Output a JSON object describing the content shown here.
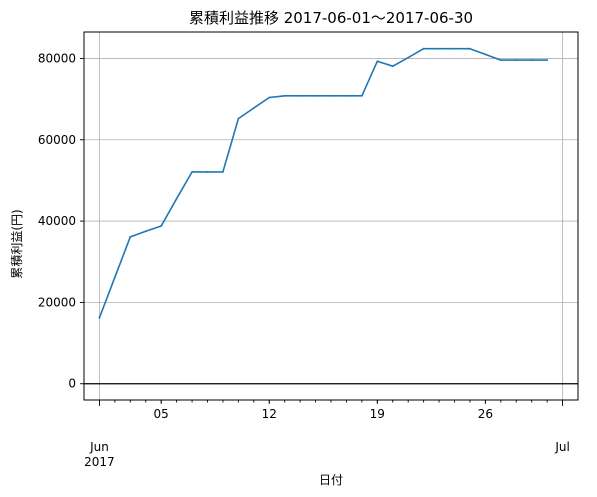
{
  "chart_data": {
    "type": "line",
    "title": "累積利益推移  2017-06-01〜2017-06-30",
    "xlabel": "日付",
    "ylabel": "累積利益(円)",
    "x": [
      "2017-06-01",
      "2017-06-02",
      "2017-06-03",
      "2017-06-04",
      "2017-06-05",
      "2017-06-06",
      "2017-06-07",
      "2017-06-08",
      "2017-06-09",
      "2017-06-10",
      "2017-06-11",
      "2017-06-12",
      "2017-06-13",
      "2017-06-14",
      "2017-06-15",
      "2017-06-16",
      "2017-06-17",
      "2017-06-18",
      "2017-06-19",
      "2017-06-20",
      "2017-06-21",
      "2017-06-22",
      "2017-06-23",
      "2017-06-24",
      "2017-06-25",
      "2017-06-26",
      "2017-06-27",
      "2017-06-28",
      "2017-06-29",
      "2017-06-30"
    ],
    "series": [
      {
        "values": [
          16200,
          26200,
          36100,
          37500,
          38800,
          45500,
          52100,
          52100,
          52100,
          65200,
          67800,
          70400,
          70800,
          70800,
          70800,
          70800,
          70800,
          70800,
          79300,
          78100,
          80200,
          82400,
          82400,
          82400,
          82400,
          81000,
          79600,
          79600,
          79600,
          79600
        ],
        "color": "#1f77b4"
      }
    ],
    "ylim": [
      -4000,
      86500
    ],
    "xlim": [
      "2017-05-31",
      "2017-07-02"
    ],
    "yticks": [
      0,
      20000,
      40000,
      60000,
      80000
    ],
    "ytick_labels": [
      "0",
      "20000",
      "40000",
      "60000",
      "80000"
    ],
    "xticks_major": [
      {
        "date": "2017-06-01",
        "label": "Jun\n2017"
      },
      {
        "date": "2017-07-01",
        "label": "Jul"
      }
    ],
    "xticks_minor": [
      {
        "date": "2017-06-05",
        "label": "05"
      },
      {
        "date": "2017-06-12",
        "label": "12"
      },
      {
        "date": "2017-06-19",
        "label": "19"
      },
      {
        "date": "2017-06-26",
        "label": "26"
      }
    ],
    "grid": true,
    "zero_line": true
  }
}
